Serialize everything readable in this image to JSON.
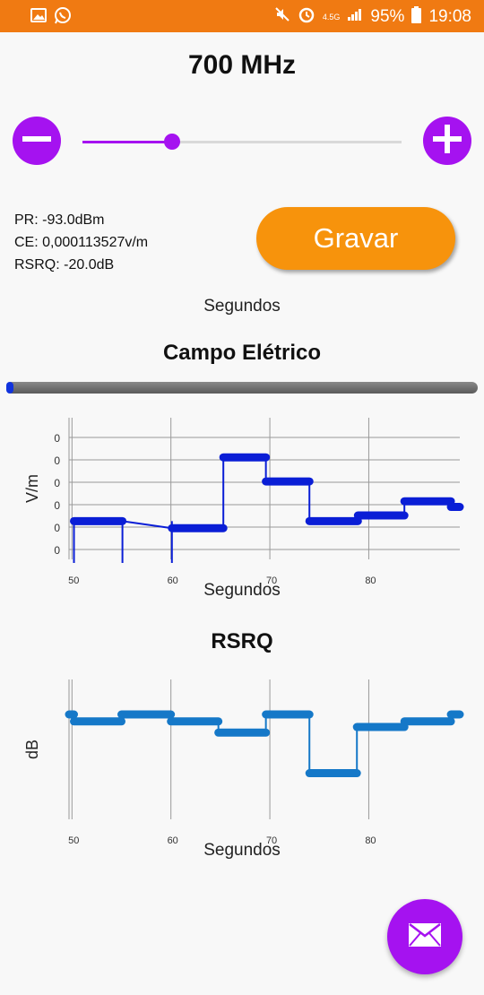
{
  "status_bar": {
    "network": "4.5G",
    "battery": "95%",
    "time": "19:08",
    "icons": [
      "gallery-icon",
      "whatsapp-icon",
      "mute-icon",
      "alarm-icon",
      "signal-icon",
      "battery-icon"
    ]
  },
  "frequency": {
    "title": "700 MHz",
    "slider_level": 0.28
  },
  "controls": {
    "decrease_icon": "minus-icon",
    "increase_icon": "plus-icon"
  },
  "readouts": {
    "pr": "PR: -93.0dBm",
    "ce": "CE: 0,000113527v/m",
    "rsrq": "RSRQ: -20.0dB"
  },
  "record_button": {
    "label": "Gravar"
  },
  "top_axis_label": "Segundos",
  "electric_field": {
    "title": "Campo Elétrico",
    "progress": 0.01
  },
  "rsrq_section": {
    "title": "RSRQ"
  },
  "colors": {
    "accent": "#a512f0",
    "status_bar": "#f07a12",
    "record": "#f7930c",
    "ef_line": "#0a1ed6",
    "rsrq_line": "#1578c8"
  },
  "fab_icon": "mail-icon",
  "chart_data": [
    {
      "type": "line",
      "title": "",
      "xlabel": "Segundos",
      "ylabel": "V/m",
      "x_ticks": [
        50,
        60,
        70,
        80
      ],
      "y_tick_labels": [
        "0",
        "0",
        "0",
        "0",
        "0",
        "0"
      ],
      "xlim": [
        49.7,
        89.2
      ],
      "ylim": [
        0,
        1
      ],
      "grid": true,
      "series": [
        {
          "segments": [
            {
              "x": [
                50.2,
                55.1
              ],
              "y": [
                0.27
              ]
            },
            {
              "x": [
                60.1,
                65.3
              ],
              "y": [
                0.22
              ]
            },
            {
              "x": [
                65.3,
                69.6
              ],
              "y": [
                0.72
              ]
            },
            {
              "x": [
                69.6,
                74.0
              ],
              "y": [
                0.55
              ]
            },
            {
              "x": [
                74.0,
                78.9
              ],
              "y": [
                0.27
              ]
            },
            {
              "x": [
                78.9,
                83.6
              ],
              "y": [
                0.31
              ]
            },
            {
              "x": [
                83.6,
                88.3
              ],
              "y": [
                0.41
              ]
            },
            {
              "x": [
                88.3,
                89.2
              ],
              "y": [
                0.37
              ]
            }
          ]
        }
      ]
    },
    {
      "type": "line",
      "title": "",
      "xlabel": "Segundos",
      "ylabel": "dB",
      "x_ticks": [
        50,
        60,
        70,
        80
      ],
      "xlim": [
        49.7,
        89.2
      ],
      "ylim": [
        0,
        1
      ],
      "grid": true,
      "series": [
        {
          "segments": [
            {
              "x": [
                49.7,
                50.2
              ],
              "y": [
                0.75
              ]
            },
            {
              "x": [
                50.2,
                55.0
              ],
              "y": [
                0.7
              ]
            },
            {
              "x": [
                55.0,
                60.0
              ],
              "y": [
                0.75
              ]
            },
            {
              "x": [
                60.0,
                64.8
              ],
              "y": [
                0.7
              ]
            },
            {
              "x": [
                64.8,
                69.6
              ],
              "y": [
                0.62
              ]
            },
            {
              "x": [
                69.6,
                74.0
              ],
              "y": [
                0.75
              ]
            },
            {
              "x": [
                74.0,
                78.8
              ],
              "y": [
                0.33
              ]
            },
            {
              "x": [
                78.8,
                83.6
              ],
              "y": [
                0.66
              ]
            },
            {
              "x": [
                83.6,
                88.3
              ],
              "y": [
                0.7
              ]
            },
            {
              "x": [
                88.3,
                89.2
              ],
              "y": [
                0.75
              ]
            }
          ]
        }
      ]
    }
  ]
}
